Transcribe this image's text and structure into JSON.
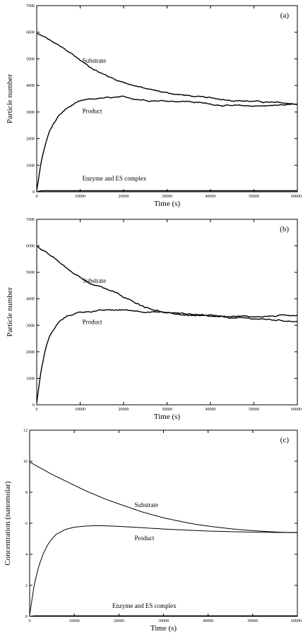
{
  "colors": {
    "line": "#000000",
    "background": "#ffffff"
  },
  "chart_data": [
    {
      "type": "line",
      "panel_label": "(a)",
      "xlabel": "Time (s)",
      "ylabel": "Particle number",
      "xlim": [
        0,
        60000
      ],
      "ylim": [
        0,
        7000
      ],
      "x_ticks": [
        0,
        10000,
        20000,
        30000,
        40000,
        50000,
        60000
      ],
      "x_tick_labels": [
        "0",
        "10000",
        "20000",
        "30000",
        "40000",
        "50000",
        "60000"
      ],
      "y_ticks": [
        0,
        1000,
        2000,
        3000,
        4000,
        5000,
        6000,
        7000
      ],
      "y_tick_labels": [
        "0",
        "1000",
        "2000",
        "3000",
        "4000",
        "5000",
        "6000",
        "7000"
      ],
      "noisy": true,
      "series": [
        {
          "x": [
            0,
            2000,
            5000,
            8000,
            10000,
            12000,
            15000,
            18000,
            20000,
            25000,
            30000,
            35000,
            40000,
            45000,
            50000,
            55000,
            60000
          ],
          "y": [
            5950,
            5800,
            5500,
            5200,
            4950,
            4720,
            4450,
            4230,
            4120,
            3880,
            3720,
            3610,
            3520,
            3450,
            3400,
            3350,
            3300
          ]
        },
        {
          "x": [
            0,
            1000,
            2000,
            3000,
            5000,
            7000,
            10000,
            12000,
            15000,
            20000,
            25000,
            30000,
            35000,
            40000,
            45000,
            50000,
            55000,
            60000
          ],
          "y": [
            50,
            1100,
            1800,
            2300,
            2850,
            3150,
            3400,
            3470,
            3520,
            3550,
            3450,
            3420,
            3400,
            3300,
            3230,
            3230,
            3250,
            3300
          ]
        },
        {
          "x": [
            0,
            1000,
            60000
          ],
          "y": [
            0,
            40,
            40
          ]
        }
      ],
      "annotations": [
        {
          "text": "Substrate",
          "x": 10500,
          "y": 4850
        },
        {
          "text": "Product",
          "x": 10500,
          "y": 2950
        },
        {
          "text": "Enzyme and ES complex",
          "x": 10500,
          "y": 430
        }
      ]
    },
    {
      "type": "line",
      "panel_label": "(b)",
      "xlabel": "Time (s)",
      "ylabel": "Particle number",
      "xlim": [
        0,
        60000
      ],
      "ylim": [
        0,
        7000
      ],
      "x_ticks": [
        0,
        10000,
        20000,
        30000,
        40000,
        50000,
        60000
      ],
      "x_tick_labels": [
        "0",
        "10000",
        "20000",
        "30000",
        "40000",
        "50000",
        "60000"
      ],
      "y_ticks": [
        0,
        1000,
        2000,
        3000,
        4000,
        5000,
        6000,
        7000
      ],
      "y_tick_labels": [
        "0",
        "1000",
        "2000",
        "3000",
        "4000",
        "5000",
        "6000",
        "7000"
      ],
      "noisy": true,
      "series": [
        {
          "x": [
            0,
            2000,
            5000,
            8000,
            10000,
            12000,
            15000,
            18000,
            20000,
            25000,
            28000,
            30000,
            35000,
            40000,
            45000,
            50000,
            55000,
            60000
          ],
          "y": [
            6000,
            5800,
            5400,
            5000,
            4800,
            4600,
            4450,
            4250,
            4050,
            3700,
            3550,
            3450,
            3380,
            3320,
            3280,
            3250,
            3200,
            3150
          ]
        },
        {
          "x": [
            0,
            1000,
            2000,
            3000,
            5000,
            7000,
            10000,
            15000,
            20000,
            25000,
            30000,
            35000,
            40000,
            45000,
            50000,
            55000,
            60000
          ],
          "y": [
            80,
            1300,
            2100,
            2600,
            3100,
            3350,
            3500,
            3560,
            3580,
            3520,
            3480,
            3430,
            3380,
            3350,
            3330,
            3350,
            3400
          ]
        }
      ],
      "annotations": [
        {
          "text": "Substrate",
          "x": 10500,
          "y": 4600
        },
        {
          "text": "Product",
          "x": 10500,
          "y": 3050
        }
      ]
    },
    {
      "type": "line",
      "panel_label": "(c)",
      "xlabel": "Time (s)",
      "ylabel": "Concentration (nanomolar)",
      "xlim": [
        0,
        60000
      ],
      "ylim": [
        0,
        12
      ],
      "x_ticks": [
        0,
        10000,
        20000,
        30000,
        40000,
        50000,
        60000
      ],
      "x_tick_labels": [
        "0",
        "10000",
        "20000",
        "30000",
        "40000",
        "50000",
        "60000"
      ],
      "y_ticks": [
        0,
        2,
        4,
        6,
        8,
        10,
        12
      ],
      "y_tick_labels": [
        "0",
        "2",
        "4",
        "6",
        "8",
        "10",
        "12"
      ],
      "noisy": false,
      "series": [
        {
          "x": [
            0,
            2500,
            5000,
            7500,
            10000,
            12500,
            15000,
            17500,
            20000,
            22500,
            25000,
            27500,
            30000,
            32500,
            35000,
            37500,
            40000,
            42500,
            45000,
            47500,
            50000,
            52500,
            55000,
            57500,
            60000
          ],
          "y": [
            9.95,
            9.55,
            9.15,
            8.8,
            8.45,
            8.1,
            7.8,
            7.5,
            7.25,
            7.0,
            6.75,
            6.55,
            6.35,
            6.2,
            6.05,
            5.92,
            5.82,
            5.73,
            5.65,
            5.58,
            5.53,
            5.48,
            5.44,
            5.41,
            5.4
          ]
        },
        {
          "x": [
            0,
            1000,
            2000,
            3000,
            4000,
            5000,
            6000,
            8000,
            10000,
            12500,
            15000,
            17500,
            20000,
            25000,
            30000,
            35000,
            40000,
            45000,
            50000,
            55000,
            60000
          ],
          "y": [
            0.1,
            2.0,
            3.2,
            4.0,
            4.6,
            5.0,
            5.3,
            5.6,
            5.75,
            5.82,
            5.85,
            5.83,
            5.8,
            5.72,
            5.63,
            5.56,
            5.5,
            5.46,
            5.43,
            5.41,
            5.4
          ]
        },
        {
          "x": [
            0,
            1000,
            60000
          ],
          "y": [
            0,
            0.04,
            0.04
          ]
        }
      ],
      "annotations": [
        {
          "text": "Substrate",
          "x": 23500,
          "y": 7.05
        },
        {
          "text": "Product",
          "x": 23500,
          "y": 4.9
        },
        {
          "text": "Enzyme and ES complex",
          "x": 18500,
          "y": 0.55
        }
      ]
    }
  ]
}
